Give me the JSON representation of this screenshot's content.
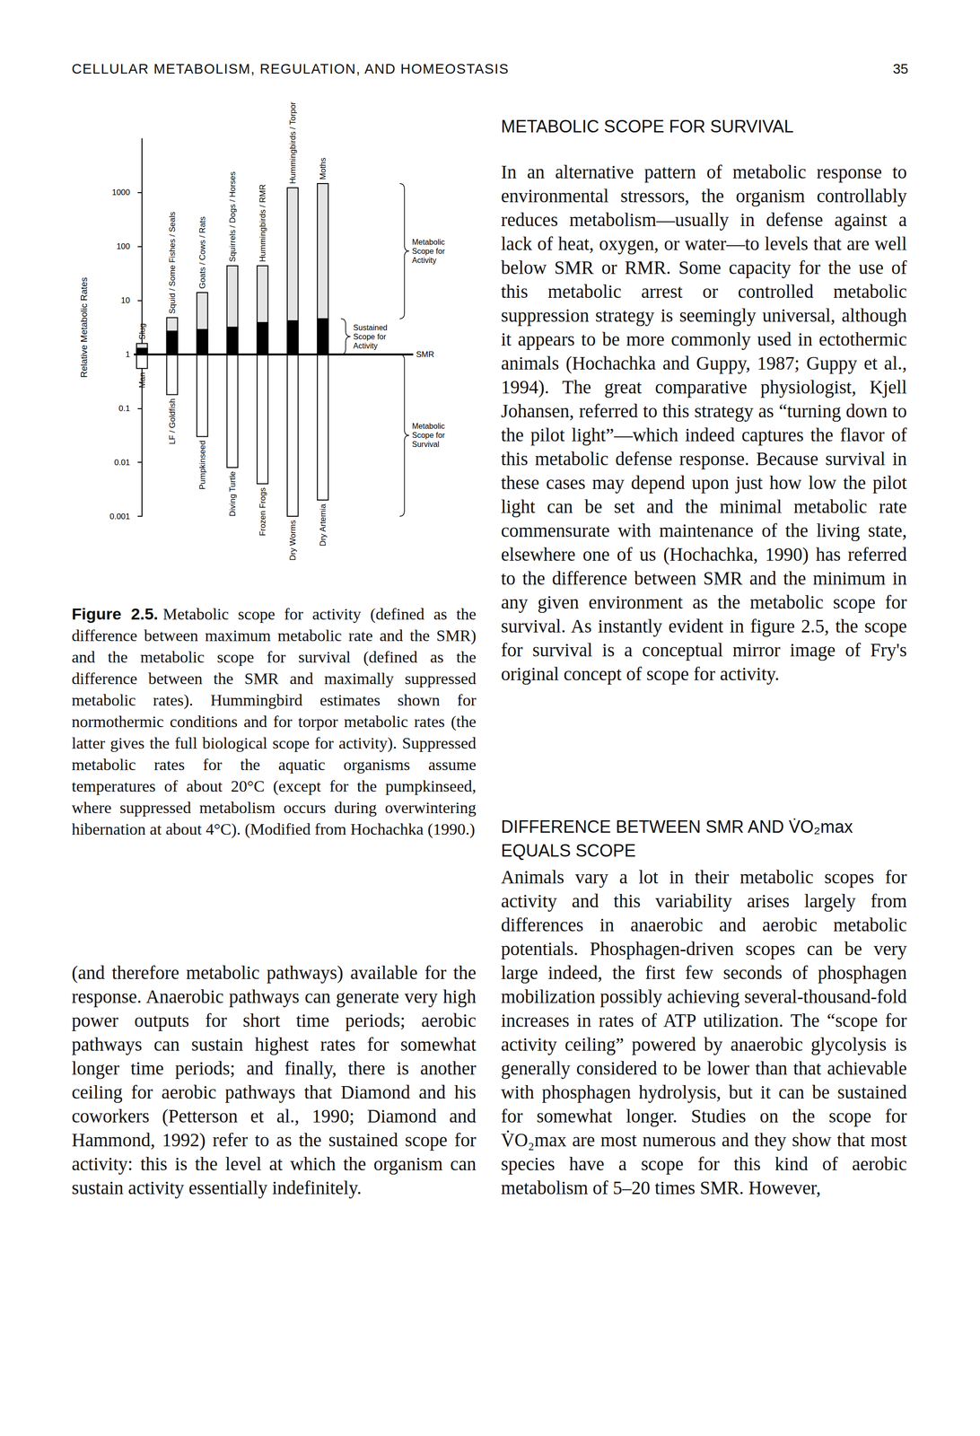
{
  "header": {
    "running_title": "CELLULAR METABOLISM, REGULATION, AND HOMEOSTASIS",
    "page_number": "35"
  },
  "chart_data": {
    "type": "bar",
    "y_label": "Relative Metabolic Rates",
    "log": "y",
    "grid": false,
    "tick_labels": "y",
    "ylim": [
      0.001,
      10000
    ],
    "yticks": [
      0.001,
      0.01,
      0.1,
      1,
      10,
      100,
      1000
    ],
    "top_labels": [
      "Slug",
      "Squid / Some Fishes / Seals",
      "Goats / Cows / Rats",
      "Squirrels / Dogs / Horses",
      "Hummingbirds / RMR",
      "Hummingbirds / Torpor",
      "Moths"
    ],
    "bottom_labels": [
      "Man",
      "LF / Goldfish",
      "Pumpkinseed",
      "Diving Turtle",
      "Frozen Frogs",
      "Dry Worms",
      "Dry Artemia"
    ],
    "maximum": [
      1.6,
      4.8,
      14,
      44,
      44,
      1230,
      1470
    ],
    "sustained": [
      1.3,
      2.7,
      2.9,
      3.2,
      3.9,
      4.2,
      4.6
    ],
    "minimum": [
      0.55,
      0.18,
      0.03,
      0.008,
      0.004,
      0.001,
      0.002
    ],
    "annotations": [
      {
        "text": "Metabolic Scope for Activity",
        "from": 1470,
        "to": 4.6
      },
      {
        "text": "Sustained Scope for Activity",
        "from": 4.6,
        "to": 1
      },
      {
        "text": "SMR",
        "value": 1
      },
      {
        "text": "Metabolic Scope for Survival",
        "from": 1,
        "to": 0.001
      }
    ]
  },
  "caption": {
    "label": "Figure 2.5.",
    "text": "Metabolic scope for activity (defined as the difference between maximum metabolic rate and the SMR) and the metabolic scope for survival (defined as the difference between the SMR and maximally suppressed metabolic rates). Hummingbird estimates shown for normothermic conditions and for torpor metabolic rates (the latter gives the full biological scope for activity). Suppressed metabolic rates for the aquatic organisms assume temperatures of about 20°C (except for the pumpkinseed, where suppressed metabolism occurs during overwintering hibernation at about 4°C). (Modified from Hochachka (1990.)"
  },
  "left_column": {
    "paragraph": "(and therefore metabolic pathways) available for the response. Anaerobic pathways can generate very high power outputs for short time periods; aerobic pathways can sustain highest rates for somewhat longer time periods; and finally, there is another ceiling for aerobic pathways that Diamond and his coworkers (Petterson et al., 1990; Diamond and Hammond, 1992) refer to as the sustained scope for activity: this is the level at which the organism can sustain activity essentially indefinitely."
  },
  "right_column": {
    "sections": [
      {
        "heading": "METABOLIC SCOPE FOR SURVIVAL",
        "paragraph": "In an alternative pattern of metabolic response to environmental stressors, the organism controllably reduces metabolism—usually in defense against a lack of heat, oxygen, or water—to levels that are well below SMR or RMR. Some capacity for the use of this metabolic arrest or controlled metabolic suppression strategy is seemingly universal, although it appears to be more commonly used in ectothermic animals (Hochachka and Guppy, 1987; Guppy et al., 1994). The great comparative physiologist, Kjell Johansen, referred to this strategy as “turning down to the pilot light”—which indeed captures the flavor of this metabolic defense response. Because survival in these cases may depend upon just how low the pilot light can be set and the minimal metabolic rate commensurate with maintenance of the living state, elsewhere one of us (Hochachka, 1990) has referred to the difference between SMR and the minimum in any given environment as the metabolic scope for survival. As instantly evident in figure 2.5, the scope for survival is a conceptual mirror image of Fry's original concept of scope for activity."
      },
      {
        "heading": "DIFFERENCE BETWEEN SMR AND V̇O₂max EQUALS SCOPE",
        "paragraph": "Animals vary a lot in their metabolic scopes for activity and this variability arises largely from differences in anaerobic and aerobic metabolic potentials. Phosphagen-driven scopes can be very large indeed, the first few seconds of phosphagen mobilization possibly achieving several-thousand-fold increases in rates of ATP utilization. The “scope for activity ceiling” powered by anaerobic glycolysis is generally considered to be lower than that achievable with phosphagen hydrolysis, but it can be sustained for somewhat longer. Studies on the scope for V̇O₂max are most numerous and they show that most species have a scope for this kind of aerobic metabolism of 5–20 times SMR. However,"
      }
    ]
  }
}
